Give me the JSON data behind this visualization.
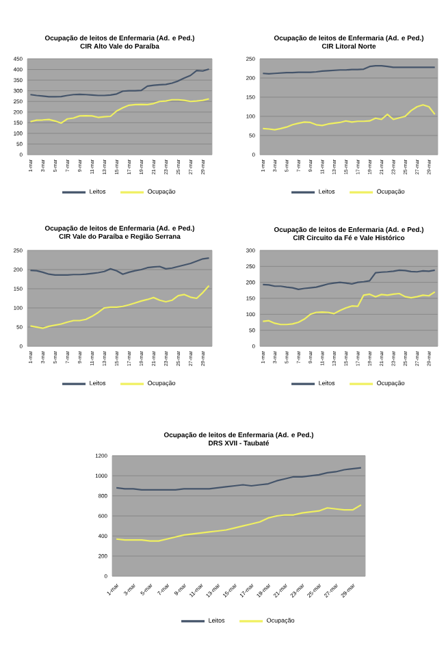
{
  "chart_data": [
    {
      "type": "line",
      "title": "Ocupação de leitos de Enfermaria (Ad. e Ped.)",
      "subtitle": "CIR Alto Vale do Paraíba",
      "categories": [
        "1-mar",
        null,
        "3-mar",
        null,
        "5-mar",
        null,
        "7-mar",
        null,
        "9-mar",
        null,
        "11-mar",
        null,
        "13-mar",
        null,
        "15-mar",
        null,
        "17-mar",
        null,
        "19-mar",
        null,
        "21-mar",
        null,
        "23-mar",
        null,
        "25-mar",
        null,
        "27-mar",
        null,
        "29-mar",
        null
      ],
      "ylim": [
        0,
        450
      ],
      "yticks": [
        0,
        50,
        100,
        150,
        200,
        250,
        300,
        350,
        400,
        450
      ],
      "grid": "y",
      "legend": "bottom",
      "marker": "none",
      "line_style": "solid",
      "series": [
        {
          "name": "Leitos",
          "color": "#44546a",
          "values": [
            282,
            278,
            275,
            272,
            272,
            273,
            278,
            282,
            283,
            282,
            280,
            278,
            278,
            280,
            285,
            298,
            300,
            300,
            302,
            322,
            326,
            328,
            330,
            336,
            346,
            360,
            372,
            395,
            393,
            402
          ]
        },
        {
          "name": "Ocupação",
          "color": "#f0f060",
          "values": [
            155,
            162,
            163,
            165,
            158,
            148,
            168,
            172,
            182,
            183,
            182,
            175,
            178,
            180,
            205,
            220,
            232,
            235,
            236,
            235,
            240,
            250,
            252,
            258,
            258,
            255,
            250,
            252,
            255,
            262
          ]
        }
      ]
    },
    {
      "type": "line",
      "title": "Ocupação de leitos de Enfermaria (Ad. e Ped.)",
      "subtitle": "CIR Litoral Norte",
      "categories": [
        "1-mar",
        null,
        "3-mar",
        null,
        "5-mar",
        null,
        "7-mar",
        null,
        "9-mar",
        null,
        "11-mar",
        null,
        "13-mar",
        null,
        "15-mar",
        null,
        "17-mar",
        null,
        "19-mar",
        null,
        "21-mar",
        null,
        "23-mar",
        null,
        "25-mar",
        null,
        "27-mar",
        null,
        "29-mar",
        null
      ],
      "ylim": [
        0,
        250
      ],
      "yticks": [
        0,
        50,
        100,
        150,
        200,
        250
      ],
      "grid": "y",
      "legend": "bottom",
      "marker": "none",
      "line_style": "solid",
      "series": [
        {
          "name": "Leitos",
          "color": "#44546a",
          "values": [
            212,
            211,
            212,
            213,
            214,
            214,
            215,
            215,
            215,
            216,
            218,
            219,
            220,
            221,
            221,
            222,
            222,
            223,
            230,
            232,
            232,
            230,
            228,
            228,
            228,
            228,
            228,
            228,
            228,
            228
          ]
        },
        {
          "name": "Ocupação",
          "color": "#f0f060",
          "values": [
            68,
            67,
            65,
            68,
            72,
            78,
            82,
            85,
            84,
            78,
            76,
            80,
            82,
            84,
            88,
            85,
            87,
            87,
            88,
            95,
            92,
            105,
            92,
            96,
            100,
            115,
            125,
            130,
            125,
            105
          ]
        }
      ]
    },
    {
      "type": "line",
      "title": "Ocupação de leitos de Enfermaria (Ad. e Ped.)",
      "subtitle": "CIR Vale do Paraíba e Região Serrana",
      "categories": [
        "1-mar",
        null,
        "3-mar",
        null,
        "5-mar",
        null,
        "7-mar",
        null,
        "9-mar",
        null,
        "11-mar",
        null,
        "13-mar",
        null,
        "15-mar",
        null,
        "17-mar",
        null,
        "19-mar",
        null,
        "21-mar",
        null,
        "23-mar",
        null,
        "25-mar",
        null,
        "27-mar",
        null,
        "29-mar",
        null
      ],
      "ylim": [
        0,
        250
      ],
      "yticks": [
        0,
        50,
        100,
        150,
        200,
        250
      ],
      "grid": "y",
      "legend": "bottom",
      "marker": "none",
      "line_style": "solid",
      "series": [
        {
          "name": "Leitos",
          "color": "#44546a",
          "values": [
            198,
            197,
            193,
            188,
            186,
            186,
            186,
            187,
            187,
            188,
            190,
            192,
            195,
            202,
            197,
            188,
            193,
            197,
            200,
            205,
            207,
            208,
            202,
            204,
            208,
            212,
            216,
            222,
            228,
            230
          ]
        },
        {
          "name": "Ocupação",
          "color": "#f0f060",
          "values": [
            53,
            50,
            47,
            52,
            55,
            58,
            63,
            67,
            67,
            70,
            78,
            88,
            100,
            102,
            102,
            104,
            108,
            113,
            118,
            122,
            127,
            120,
            116,
            120,
            132,
            135,
            128,
            125,
            140,
            158
          ]
        }
      ]
    },
    {
      "type": "line",
      "title": "Ocupação de leitos de Enfermaria (Ad. e Ped.)",
      "subtitle": "CIR Circuito da Fé e Vale Histórico",
      "categories": [
        "1-mar",
        null,
        "3-mar",
        null,
        "5-mar",
        null,
        "7-mar",
        null,
        "9-mar",
        null,
        "11-mar",
        null,
        "13-mar",
        null,
        "15-mar",
        null,
        "17-mar",
        null,
        "19-mar",
        null,
        "21-mar",
        null,
        "23-mar",
        null,
        "25-mar",
        null,
        "27-mar",
        null,
        "29-mar",
        null
      ],
      "ylim": [
        0,
        300
      ],
      "yticks": [
        0,
        50,
        100,
        150,
        200,
        250,
        300
      ],
      "grid": "y",
      "legend": "bottom",
      "marker": "none",
      "line_style": "solid",
      "series": [
        {
          "name": "Leitos",
          "color": "#44546a",
          "values": [
            193,
            192,
            188,
            188,
            185,
            183,
            178,
            181,
            183,
            185,
            190,
            195,
            198,
            200,
            198,
            195,
            200,
            202,
            205,
            230,
            232,
            233,
            235,
            238,
            237,
            234,
            233,
            236,
            235,
            238
          ]
        },
        {
          "name": "Ocupação",
          "color": "#f0f060",
          "values": [
            78,
            80,
            72,
            68,
            68,
            70,
            75,
            85,
            100,
            106,
            107,
            106,
            102,
            112,
            120,
            126,
            125,
            160,
            163,
            155,
            162,
            160,
            163,
            165,
            155,
            152,
            155,
            160,
            158,
            170
          ]
        }
      ]
    },
    {
      "type": "line",
      "title": "Ocupação de leitos de Enfermaria (Ad. e Ped.)",
      "subtitle": "DRS XVII - Taubaté",
      "categories": [
        "1-mar",
        null,
        "3-mar",
        null,
        "5-mar",
        null,
        "7-mar",
        null,
        "9-mar",
        null,
        "11-mar",
        null,
        "13-mar",
        null,
        "15-mar",
        null,
        "17-mar",
        null,
        "19-mar",
        null,
        "21-mar",
        null,
        "23-mar",
        null,
        "25-mar",
        null,
        "27-mar",
        null,
        "29-mar",
        null
      ],
      "ylim": [
        0,
        1200
      ],
      "yticks": [
        0,
        200,
        400,
        600,
        800,
        1000,
        1200
      ],
      "grid": "y",
      "legend": "bottom",
      "marker": "none",
      "line_style": "solid",
      "series": [
        {
          "name": "Leitos",
          "color": "#44546a",
          "values": [
            880,
            870,
            870,
            860,
            860,
            860,
            860,
            860,
            870,
            870,
            870,
            870,
            880,
            890,
            900,
            910,
            900,
            910,
            920,
            950,
            970,
            990,
            990,
            1000,
            1010,
            1030,
            1040,
            1060,
            1070,
            1080
          ]
        },
        {
          "name": "Ocupação",
          "color": "#f0f060",
          "values": [
            370,
            360,
            360,
            360,
            350,
            350,
            370,
            390,
            410,
            420,
            430,
            440,
            450,
            460,
            480,
            500,
            520,
            540,
            580,
            600,
            610,
            610,
            630,
            640,
            650,
            680,
            670,
            660,
            660,
            710
          ]
        }
      ]
    }
  ]
}
